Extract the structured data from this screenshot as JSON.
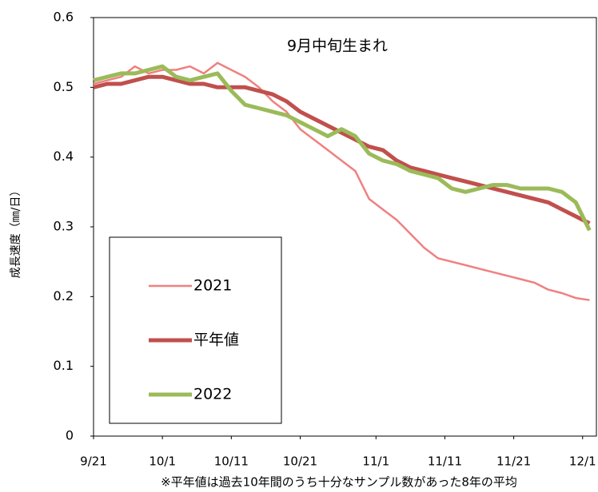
{
  "chart_data": {
    "type": "line",
    "title": "9月中旬生まれ",
    "y_label": "成長速度（㎜/日）",
    "footnote": "※平年値は過去10年間のうち十分なサンプル数があった8年の平均",
    "x": [
      0,
      2,
      4,
      6,
      8,
      10,
      12,
      14,
      16,
      18,
      20,
      22,
      24,
      26,
      28,
      30,
      32,
      34,
      36,
      38,
      40,
      42,
      44,
      46,
      48,
      50,
      52,
      54,
      56,
      58,
      60,
      62,
      64,
      66,
      68,
      70,
      72
    ],
    "xlim": [
      0,
      73
    ],
    "xticks": [
      {
        "value": 0,
        "label": "9/21"
      },
      {
        "value": 10,
        "label": "10/1"
      },
      {
        "value": 20,
        "label": "10/11"
      },
      {
        "value": 30,
        "label": "10/21"
      },
      {
        "value": 41,
        "label": "11/1"
      },
      {
        "value": 51,
        "label": "11/11"
      },
      {
        "value": 61,
        "label": "11/21"
      },
      {
        "value": 71,
        "label": "12/1"
      }
    ],
    "ylim": [
      0,
      0.6
    ],
    "yticks": [
      0,
      0.1,
      0.2,
      0.3,
      0.4,
      0.5,
      0.6
    ],
    "series": [
      {
        "name": "2021",
        "color": "#f08080",
        "width": 2.5,
        "values": [
          0.505,
          0.51,
          0.515,
          0.53,
          0.52,
          0.525,
          0.525,
          0.53,
          0.52,
          0.535,
          0.525,
          0.515,
          0.5,
          0.48,
          0.465,
          0.44,
          0.425,
          0.41,
          0.395,
          0.38,
          0.34,
          0.325,
          0.31,
          0.29,
          0.27,
          0.255,
          0.25,
          0.245,
          0.24,
          0.235,
          0.23,
          0.225,
          0.22,
          0.21,
          0.205,
          0.198,
          0.195
        ]
      },
      {
        "name": "平年値",
        "color": "#c0504d",
        "width": 5,
        "values": [
          0.5,
          0.505,
          0.505,
          0.51,
          0.515,
          0.515,
          0.51,
          0.505,
          0.505,
          0.5,
          0.5,
          0.5,
          0.495,
          0.49,
          0.48,
          0.465,
          0.455,
          0.445,
          0.435,
          0.425,
          0.415,
          0.41,
          0.395,
          0.385,
          0.38,
          0.375,
          0.37,
          0.365,
          0.36,
          0.355,
          0.35,
          0.345,
          0.34,
          0.335,
          0.325,
          0.315,
          0.305
        ]
      },
      {
        "name": "2022",
        "color": "#9bbb59",
        "width": 5,
        "values": [
          0.51,
          0.515,
          0.52,
          0.52,
          0.525,
          0.53,
          0.515,
          0.51,
          0.515,
          0.52,
          0.495,
          0.475,
          0.47,
          0.465,
          0.46,
          0.45,
          0.44,
          0.43,
          0.44,
          0.43,
          0.405,
          0.395,
          0.39,
          0.38,
          0.375,
          0.37,
          0.355,
          0.35,
          0.355,
          0.36,
          0.36,
          0.355,
          0.355,
          0.355,
          0.35,
          0.335,
          0.295
        ]
      }
    ]
  }
}
